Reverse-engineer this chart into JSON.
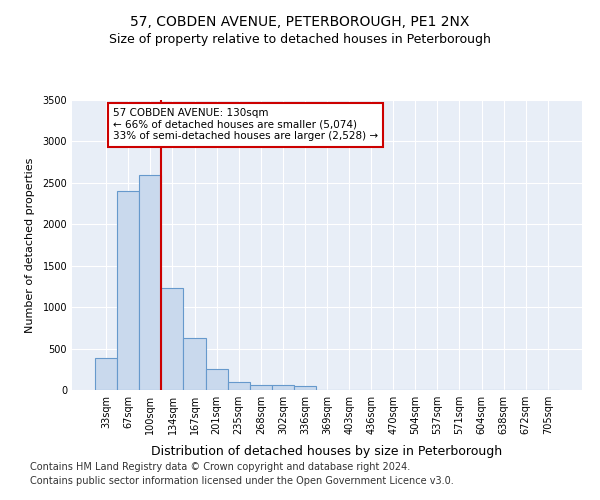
{
  "title": "57, COBDEN AVENUE, PETERBOROUGH, PE1 2NX",
  "subtitle": "Size of property relative to detached houses in Peterborough",
  "xlabel": "Distribution of detached houses by size in Peterborough",
  "ylabel": "Number of detached properties",
  "categories": [
    "33sqm",
    "67sqm",
    "100sqm",
    "134sqm",
    "167sqm",
    "201sqm",
    "235sqm",
    "268sqm",
    "302sqm",
    "336sqm",
    "369sqm",
    "403sqm",
    "436sqm",
    "470sqm",
    "504sqm",
    "537sqm",
    "571sqm",
    "604sqm",
    "638sqm",
    "672sqm",
    "705sqm"
  ],
  "values": [
    390,
    2400,
    2600,
    1230,
    630,
    255,
    100,
    65,
    55,
    50,
    0,
    0,
    0,
    0,
    0,
    0,
    0,
    0,
    0,
    0,
    0
  ],
  "bar_color": "#c9d9ed",
  "bar_edge_color": "#6699cc",
  "highlight_line_color": "#cc0000",
  "annotation_line1": "57 COBDEN AVENUE: 130sqm",
  "annotation_line2": "← 66% of detached houses are smaller (5,074)",
  "annotation_line3": "33% of semi-detached houses are larger (2,528) →",
  "annotation_box_color": "#ffffff",
  "annotation_box_edge_color": "#cc0000",
  "ylim": [
    0,
    3500
  ],
  "yticks": [
    0,
    500,
    1000,
    1500,
    2000,
    2500,
    3000,
    3500
  ],
  "footnote1": "Contains HM Land Registry data © Crown copyright and database right 2024.",
  "footnote2": "Contains public sector information licensed under the Open Government Licence v3.0.",
  "bg_color": "#ffffff",
  "plot_bg_color": "#e8eef7",
  "grid_color": "#ffffff",
  "title_fontsize": 10,
  "subtitle_fontsize": 9,
  "xlabel_fontsize": 9,
  "ylabel_fontsize": 8,
  "tick_fontsize": 7,
  "footnote_fontsize": 7
}
